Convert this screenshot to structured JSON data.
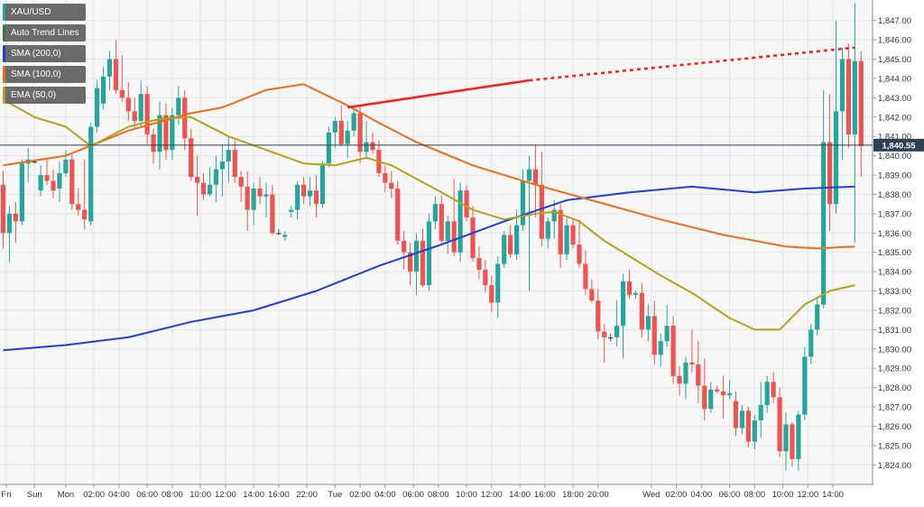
{
  "legend": {
    "symbol": "XAU/USD",
    "items": [
      {
        "label": "Auto Trend Lines",
        "color": "#2e7d32"
      },
      {
        "label": "SMA (200,0)",
        "color": "#1e3fe0"
      },
      {
        "label": "SMA (100,0)",
        "color": "#ef6c1a"
      },
      {
        "label": "EMA (50,0)",
        "color": "#b5a21b"
      }
    ]
  },
  "colors": {
    "up": "#26a69a",
    "down": "#ef5350",
    "sma200": "#1e3fe0",
    "sma100": "#ef6c1a",
    "ema50": "#b5a21b",
    "trend": "#ff1a1a",
    "price_line": "#2c3e50",
    "grid": "#e6e6e6"
  },
  "chart_data": {
    "type": "candlestick",
    "title": "",
    "symbol": "XAU/USD",
    "ylim": [
      1823.4,
      1847.6
    ],
    "yticks": [
      1824,
      1825,
      1826,
      1827,
      1828,
      1829,
      1830,
      1831,
      1832,
      1833,
      1834,
      1835,
      1836,
      1837,
      1838,
      1839,
      1840,
      1841,
      1842,
      1843,
      1844,
      1845,
      1846,
      1847
    ],
    "ytick_labels": [
      "1,824.00",
      "1,825.00",
      "1,826.00",
      "1,827.00",
      "1,828.00",
      "1,829.00",
      "1,830.00",
      "1,831.00",
      "1,832.00",
      "1,833.00",
      "1,834.00",
      "1,835.00",
      "1,836.00",
      "1,837.00",
      "1,838.00",
      "1,839.00",
      "1,840.00",
      "1,841.00",
      "1,842.00",
      "1,843.00",
      "1,844.00",
      "1,845.00",
      "1,846.00",
      "1,847.00"
    ],
    "x_ticks": [
      {
        "i": 0.5,
        "label": "Fri"
      },
      {
        "i": 5,
        "label": "Sun"
      },
      {
        "i": 10,
        "label": "Mon"
      },
      {
        "i": 14.5,
        "label": "02:00"
      },
      {
        "i": 18.5,
        "label": "04:00"
      },
      {
        "i": 23,
        "label": "06:00"
      },
      {
        "i": 27,
        "label": "08:00"
      },
      {
        "i": 31.5,
        "label": "10:00"
      },
      {
        "i": 35.5,
        "label": "12:00"
      },
      {
        "i": 40,
        "label": "14:00"
      },
      {
        "i": 44,
        "label": "16:00"
      },
      {
        "i": 48.5,
        "label": "22:00"
      },
      {
        "i": 53,
        "label": "Tue"
      },
      {
        "i": 57,
        "label": "02:00"
      },
      {
        "i": 61,
        "label": "04:00"
      },
      {
        "i": 65.5,
        "label": "06:00"
      },
      {
        "i": 69.5,
        "label": "08:00"
      },
      {
        "i": 74,
        "label": "10:00"
      },
      {
        "i": 78,
        "label": "12:00"
      },
      {
        "i": 82.5,
        "label": "14:00"
      },
      {
        "i": 86.5,
        "label": "16:00"
      },
      {
        "i": 91,
        "label": "18:00"
      },
      {
        "i": 95,
        "label": "20:00"
      },
      {
        "i": 103.5,
        "label": "Wed"
      },
      {
        "i": 107.5,
        "label": "02:00"
      },
      {
        "i": 111.5,
        "label": "04:00"
      },
      {
        "i": 116,
        "label": "06:00"
      },
      {
        "i": 120,
        "label": "08:00"
      },
      {
        "i": 124.5,
        "label": "10:00"
      },
      {
        "i": 128.5,
        "label": "12:00"
      },
      {
        "i": 132.5,
        "label": "14:00"
      }
    ],
    "candles": [
      [
        1838.5,
        1839.2,
        1835.2,
        1836.0
      ],
      [
        1836.0,
        1837.4,
        1834.5,
        1837.0
      ],
      [
        1837.0,
        1837.6,
        1835.5,
        1836.6
      ],
      [
        1836.6,
        1839.8,
        1836.4,
        1839.6
      ],
      [
        1839.6,
        1840.4,
        1838.6,
        1839.8
      ],
      [
        1839.7,
        1839.8,
        1839.6,
        1839.7
      ],
      [
        1838.2,
        1839.5,
        1837.9,
        1839.0
      ],
      [
        1839.0,
        1839.8,
        1838.5,
        1838.7
      ],
      [
        1838.7,
        1839.3,
        1837.8,
        1838.2
      ],
      [
        1838.3,
        1839.7,
        1837.6,
        1839.1
      ],
      [
        1839.1,
        1840.3,
        1838.9,
        1839.8
      ],
      [
        1839.8,
        1840.1,
        1837.2,
        1837.5
      ],
      [
        1837.5,
        1838.3,
        1836.9,
        1837.2
      ],
      [
        1837.2,
        1839.8,
        1836.2,
        1836.7
      ],
      [
        1836.6,
        1841.7,
        1836.4,
        1841.5
      ],
      [
        1841.5,
        1843.9,
        1841.2,
        1843.5
      ],
      [
        1842.7,
        1844.6,
        1842.4,
        1844.1
      ],
      [
        1844.1,
        1845.4,
        1843.4,
        1845.0
      ],
      [
        1845.0,
        1846.0,
        1843.2,
        1843.4
      ],
      [
        1843.4,
        1845.2,
        1842.8,
        1843.0
      ],
      [
        1843.0,
        1843.8,
        1841.8,
        1842.3
      ],
      [
        1842.3,
        1843.0,
        1841.4,
        1841.8
      ],
      [
        1841.8,
        1843.9,
        1841.5,
        1843.2
      ],
      [
        1843.2,
        1843.6,
        1840.6,
        1841.1
      ],
      [
        1841.1,
        1841.4,
        1839.6,
        1840.2
      ],
      [
        1840.2,
        1842.8,
        1839.3,
        1842.1
      ],
      [
        1842.1,
        1842.7,
        1839.8,
        1840.3
      ],
      [
        1840.3,
        1842.5,
        1839.8,
        1842.1
      ],
      [
        1842.1,
        1843.6,
        1841.6,
        1843.0
      ],
      [
        1843.0,
        1843.4,
        1840.3,
        1840.9
      ],
      [
        1840.9,
        1841.4,
        1838.7,
        1838.9
      ],
      [
        1838.9,
        1840.0,
        1836.9,
        1838.6
      ],
      [
        1838.6,
        1839.1,
        1837.7,
        1838.0
      ],
      [
        1838.0,
        1839.4,
        1837.9,
        1838.5
      ],
      [
        1838.5,
        1840.0,
        1837.6,
        1839.3
      ],
      [
        1839.3,
        1840.6,
        1837.9,
        1839.7
      ],
      [
        1839.7,
        1841.0,
        1838.6,
        1840.3
      ],
      [
        1840.3,
        1840.8,
        1838.6,
        1838.9
      ],
      [
        1838.9,
        1839.2,
        1837.6,
        1838.4
      ],
      [
        1838.4,
        1839.2,
        1836.1,
        1837.2
      ],
      [
        1837.2,
        1838.6,
        1836.4,
        1838.3
      ],
      [
        1838.3,
        1838.9,
        1837.5,
        1837.9
      ],
      [
        1837.9,
        1838.6,
        1836.8,
        1838.0
      ],
      [
        1838.0,
        1838.5,
        1835.9,
        1836.0
      ],
      [
        1836.0,
        1836.2,
        1835.9,
        1836.0
      ],
      [
        1835.8,
        1836.1,
        1835.6,
        1835.9
      ],
      [
        1837.1,
        1837.4,
        1836.8,
        1837.2
      ],
      [
        1837.2,
        1838.7,
        1836.7,
        1838.5
      ],
      [
        1838.5,
        1838.9,
        1837.5,
        1837.9
      ],
      [
        1837.9,
        1838.9,
        1837.4,
        1838.2
      ],
      [
        1838.2,
        1839.0,
        1836.8,
        1837.5
      ],
      [
        1837.5,
        1839.7,
        1837.3,
        1839.6
      ],
      [
        1839.6,
        1841.5,
        1839.4,
        1841.2
      ],
      [
        1841.2,
        1842.0,
        1840.4,
        1841.8
      ],
      [
        1841.8,
        1842.6,
        1840.5,
        1840.6
      ],
      [
        1840.6,
        1841.8,
        1839.9,
        1841.3
      ],
      [
        1841.3,
        1842.6,
        1841.0,
        1842.2
      ],
      [
        1842.2,
        1842.6,
        1839.6,
        1840.2
      ],
      [
        1840.2,
        1841.8,
        1839.8,
        1840.7
      ],
      [
        1840.7,
        1841.2,
        1840.1,
        1840.3
      ],
      [
        1840.3,
        1840.8,
        1838.9,
        1839.1
      ],
      [
        1839.1,
        1839.5,
        1838.1,
        1838.6
      ],
      [
        1838.6,
        1839.2,
        1837.8,
        1838.3
      ],
      [
        1838.3,
        1838.7,
        1835.4,
        1835.6
      ],
      [
        1835.6,
        1836.1,
        1834.1,
        1835.0
      ],
      [
        1835.0,
        1835.5,
        1833.3,
        1834.0
      ],
      [
        1834.0,
        1836.0,
        1832.8,
        1835.6
      ],
      [
        1835.6,
        1836.2,
        1833.2,
        1833.3
      ],
      [
        1833.3,
        1837.0,
        1833.0,
        1836.6
      ],
      [
        1836.6,
        1837.9,
        1836.2,
        1837.5
      ],
      [
        1837.5,
        1837.9,
        1835.4,
        1835.6
      ],
      [
        1835.6,
        1836.9,
        1834.9,
        1836.6
      ],
      [
        1836.6,
        1838.8,
        1834.8,
        1835.0
      ],
      [
        1835.0,
        1838.6,
        1834.5,
        1838.2
      ],
      [
        1838.2,
        1838.5,
        1836.6,
        1836.8
      ],
      [
        1836.8,
        1837.4,
        1834.5,
        1834.7
      ],
      [
        1834.7,
        1835.3,
        1833.6,
        1834.1
      ],
      [
        1834.1,
        1834.6,
        1832.9,
        1833.3
      ],
      [
        1833.3,
        1833.8,
        1831.9,
        1832.4
      ],
      [
        1832.4,
        1834.8,
        1831.6,
        1834.4
      ],
      [
        1834.4,
        1836.1,
        1834.2,
        1835.9
      ],
      [
        1835.9,
        1836.4,
        1834.7,
        1834.9
      ],
      [
        1834.9,
        1837.2,
        1834.6,
        1836.4
      ],
      [
        1836.4,
        1839.3,
        1836.1,
        1838.7
      ],
      [
        1838.7,
        1840.0,
        1833.0,
        1839.3
      ],
      [
        1839.3,
        1840.6,
        1836.8,
        1838.5
      ],
      [
        1838.5,
        1840.2,
        1835.3,
        1835.7
      ],
      [
        1835.7,
        1836.8,
        1835.2,
        1836.6
      ],
      [
        1836.6,
        1837.7,
        1835.7,
        1837.2
      ],
      [
        1837.2,
        1837.5,
        1834.2,
        1834.9
      ],
      [
        1834.9,
        1836.8,
        1834.6,
        1836.4
      ],
      [
        1836.4,
        1836.7,
        1835.2,
        1835.4
      ],
      [
        1835.4,
        1836.7,
        1834.2,
        1834.4
      ],
      [
        1834.4,
        1835.1,
        1832.8,
        1833.1
      ],
      [
        1833.1,
        1833.6,
        1832.4,
        1832.5
      ],
      [
        1832.5,
        1833.1,
        1830.5,
        1830.9
      ],
      [
        1830.9,
        1831.3,
        1829.3,
        1830.6
      ],
      [
        1830.6,
        1830.8,
        1830.4,
        1830.6
      ],
      [
        1830.6,
        1832.5,
        1830.1,
        1831.2
      ],
      [
        1831.2,
        1833.9,
        1829.5,
        1833.5
      ],
      [
        1833.5,
        1834.1,
        1832.6,
        1832.8
      ],
      [
        1832.8,
        1833.0,
        1832.6,
        1832.9
      ],
      [
        1832.9,
        1833.4,
        1830.6,
        1831.0
      ],
      [
        1831.0,
        1832.3,
        1830.4,
        1831.7
      ],
      [
        1831.7,
        1832.5,
        1829.2,
        1829.7
      ],
      [
        1829.7,
        1830.8,
        1829.1,
        1830.4
      ],
      [
        1830.4,
        1832.3,
        1830.1,
        1831.2
      ],
      [
        1831.2,
        1831.7,
        1828.2,
        1828.6
      ],
      [
        1828.6,
        1829.1,
        1827.6,
        1828.2
      ],
      [
        1828.2,
        1829.6,
        1827.4,
        1829.3
      ],
      [
        1829.3,
        1831.0,
        1828.8,
        1829.2
      ],
      [
        1829.2,
        1830.4,
        1827.2,
        1828.1
      ],
      [
        1828.1,
        1829.5,
        1826.3,
        1826.9
      ],
      [
        1826.9,
        1828.3,
        1826.7,
        1827.9
      ],
      [
        1827.9,
        1828.1,
        1827.7,
        1827.8
      ],
      [
        1827.8,
        1828.6,
        1826.4,
        1827.6
      ],
      [
        1827.6,
        1828.4,
        1827.4,
        1827.7
      ],
      [
        1827.3,
        1827.8,
        1825.5,
        1825.9
      ],
      [
        1825.9,
        1827.1,
        1825.6,
        1826.8
      ],
      [
        1826.8,
        1827.0,
        1824.9,
        1825.2
      ],
      [
        1825.2,
        1826.6,
        1824.8,
        1826.3
      ],
      [
        1826.3,
        1828.3,
        1825.4,
        1827.1
      ],
      [
        1827.1,
        1828.6,
        1826.7,
        1828.3
      ],
      [
        1828.3,
        1828.8,
        1827.2,
        1827.5
      ],
      [
        1827.5,
        1828.0,
        1824.4,
        1824.7
      ],
      [
        1824.7,
        1826.7,
        1823.7,
        1826.1
      ],
      [
        1826.1,
        1826.2,
        1823.9,
        1824.3
      ],
      [
        1824.3,
        1826.8,
        1823.7,
        1826.6
      ],
      [
        1826.6,
        1830.1,
        1826.3,
        1829.6
      ],
      [
        1829.6,
        1831.3,
        1829.2,
        1831.0
      ],
      [
        1831.0,
        1832.6,
        1830.7,
        1832.3
      ],
      [
        1832.3,
        1843.4,
        1832.1,
        1840.7
      ],
      [
        1840.7,
        1843.2,
        1836.1,
        1837.5
      ],
      [
        1837.5,
        1847.0,
        1837.0,
        1842.3
      ],
      [
        1842.3,
        1845.6,
        1839.8,
        1845.0
      ],
      [
        1845.0,
        1845.8,
        1840.4,
        1841.1
      ],
      [
        1841.1,
        1847.9,
        1835.5,
        1844.9
      ],
      [
        1844.9,
        1845.4,
        1838.9,
        1840.5
      ]
    ],
    "sma200": [
      [
        0,
        1829.93
      ],
      [
        10,
        1830.2
      ],
      [
        20,
        1830.6
      ],
      [
        30,
        1831.4
      ],
      [
        40,
        1832.0
      ],
      [
        50,
        1833.0
      ],
      [
        60,
        1834.3
      ],
      [
        70,
        1835.4
      ],
      [
        80,
        1836.6
      ],
      [
        90,
        1837.7
      ],
      [
        100,
        1838.1
      ],
      [
        110,
        1838.4
      ],
      [
        120,
        1838.1
      ],
      [
        128,
        1838.3
      ],
      [
        136,
        1838.4
      ]
    ],
    "sma100": [
      [
        0,
        1839.5
      ],
      [
        10,
        1840.0
      ],
      [
        20,
        1841.3
      ],
      [
        30,
        1842.2
      ],
      [
        35,
        1842.5
      ],
      [
        42,
        1843.4
      ],
      [
        48,
        1843.7
      ],
      [
        55,
        1842.6
      ],
      [
        60,
        1841.7
      ],
      [
        66,
        1840.7
      ],
      [
        75,
        1839.5
      ],
      [
        85,
        1838.5
      ],
      [
        95,
        1837.6
      ],
      [
        105,
        1836.7
      ],
      [
        115,
        1835.9
      ],
      [
        125,
        1835.3
      ],
      [
        130,
        1835.2
      ],
      [
        136,
        1835.3
      ]
    ],
    "ema50": [
      [
        0,
        1842.9
      ],
      [
        5,
        1842.0
      ],
      [
        10,
        1841.5
      ],
      [
        14,
        1840.5
      ],
      [
        20,
        1841.5
      ],
      [
        25,
        1841.9
      ],
      [
        30,
        1842.0
      ],
      [
        36,
        1841.0
      ],
      [
        42,
        1840.3
      ],
      [
        48,
        1839.6
      ],
      [
        53,
        1839.5
      ],
      [
        58,
        1839.9
      ],
      [
        62,
        1839.5
      ],
      [
        66,
        1838.8
      ],
      [
        70,
        1838.1
      ],
      [
        75,
        1837.2
      ],
      [
        80,
        1836.7
      ],
      [
        85,
        1837.0
      ],
      [
        88,
        1837.1
      ],
      [
        92,
        1836.6
      ],
      [
        96,
        1835.6
      ],
      [
        100,
        1834.8
      ],
      [
        105,
        1833.8
      ],
      [
        110,
        1832.9
      ],
      [
        116,
        1831.6
      ],
      [
        120,
        1831.0
      ],
      [
        124,
        1831.0
      ],
      [
        128,
        1832.3
      ],
      [
        132,
        1833.0
      ],
      [
        136,
        1833.3
      ]
    ],
    "trend_solid": [
      [
        55,
        1842.5
      ],
      [
        84,
        1843.9
      ]
    ],
    "trend_dotted": [
      [
        84,
        1843.9
      ],
      [
        136,
        1845.6
      ]
    ],
    "last_price": 1840.55,
    "last_price_label": "1,840.55"
  }
}
